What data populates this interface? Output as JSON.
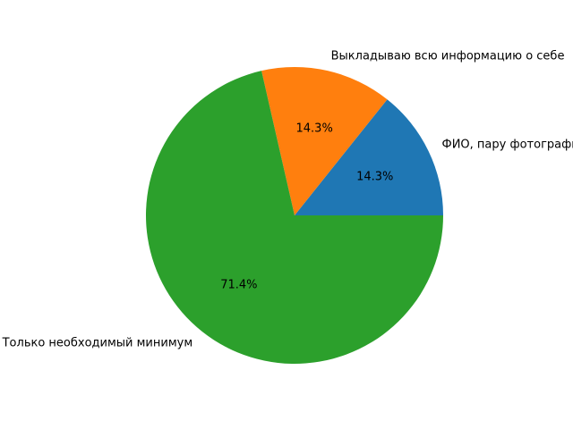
{
  "chart_data": {
    "type": "pie",
    "labels": [
      "ФИО, пару фотографий",
      "Выкладываю всю информацию о себе",
      "Только необходимый минимум"
    ],
    "values": [
      1,
      1,
      5
    ],
    "percent_labels": [
      "14.3%",
      "14.3%",
      "71.4%"
    ],
    "colors": [
      "#1f77b4",
      "#ff7f0e",
      "#2ca02c"
    ],
    "start_angle": 0,
    "direction": "counterclockwise"
  }
}
